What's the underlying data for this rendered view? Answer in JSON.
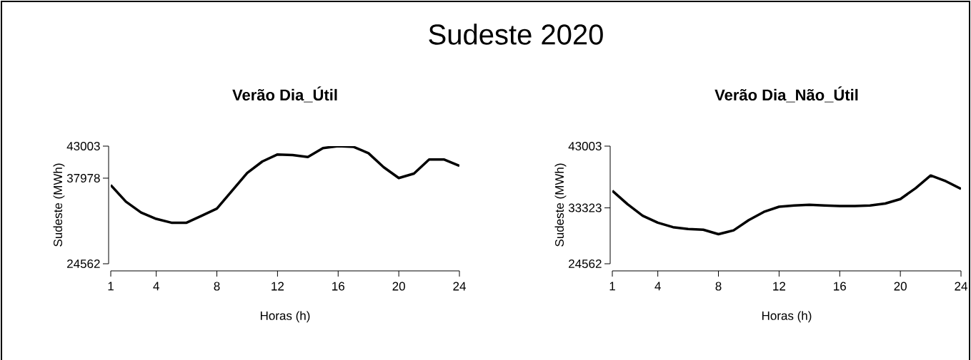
{
  "chart_data": [
    {
      "type": "line",
      "title": "Verão Dia_Útil",
      "xlabel": "Horas (h)",
      "ylabel": "Sudeste (MWh)",
      "annotations": [
        "Sudeste 2020"
      ],
      "x": [
        1,
        2,
        3,
        4,
        5,
        6,
        7,
        8,
        9,
        10,
        11,
        12,
        13,
        14,
        15,
        16,
        17,
        18,
        19,
        20,
        21,
        22,
        23,
        24
      ],
      "series": [
        {
          "color": "#000000",
          "values": [
            36900,
            34300,
            32600,
            31600,
            31000,
            31000,
            32100,
            33200,
            36000,
            38800,
            40600,
            41700,
            41600,
            41300,
            42700,
            43000,
            42900,
            41900,
            39700,
            38000,
            38700,
            40900,
            40900,
            39900
          ]
        }
      ],
      "xlim": [
        1,
        24
      ],
      "ylim": [
        24562,
        43003
      ],
      "xticks": [
        1,
        4,
        8,
        12,
        16,
        20,
        24
      ],
      "yticks": [
        24562,
        37978,
        43003
      ],
      "grid": false,
      "marker": "none",
      "line_style": "solid"
    },
    {
      "type": "line",
      "title": "Verão Dia_Não_Útil",
      "xlabel": "Horas (h)",
      "ylabel": "Sudeste (MWh)",
      "x": [
        1,
        2,
        3,
        4,
        5,
        6,
        7,
        8,
        9,
        10,
        11,
        12,
        13,
        14,
        15,
        16,
        17,
        18,
        19,
        20,
        21,
        22,
        23,
        24
      ],
      "series": [
        {
          "color": "#000000",
          "values": [
            36000,
            33900,
            32100,
            31000,
            30300,
            30000,
            29900,
            29200,
            29800,
            31400,
            32700,
            33500,
            33700,
            33800,
            33700,
            33600,
            33600,
            33700,
            34000,
            34700,
            36400,
            38400,
            37500,
            36300
          ]
        }
      ],
      "xlim": [
        1,
        24
      ],
      "ylim": [
        24562,
        43003
      ],
      "xticks": [
        1,
        4,
        8,
        12,
        16,
        20,
        24
      ],
      "yticks": [
        24562,
        33323,
        43003
      ],
      "grid": false,
      "marker": "none",
      "line_style": "solid"
    }
  ]
}
